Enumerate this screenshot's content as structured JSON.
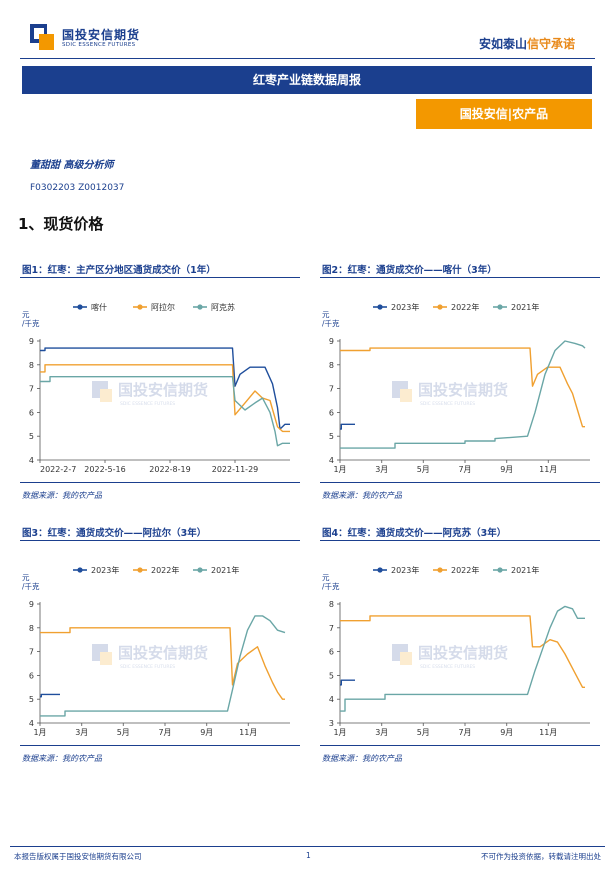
{
  "header": {
    "logo_cn": "国投安信期货",
    "logo_en": "SDIC ESSENCE FUTURES",
    "slogan_part1": "安如泰山",
    "slogan_part2": "信守承诺",
    "title": "红枣产业链数据周报",
    "tag": "国投安信|农产品"
  },
  "analyst": {
    "name_title": "董甜甜  高级分析师",
    "license": "F0302203  Z0012037"
  },
  "section": {
    "title": "1、现货价格"
  },
  "colors": {
    "brand_blue": "#1b3f8e",
    "brand_orange": "#f39800",
    "s_blue": "#1f4e9c",
    "s_orange": "#f0a030",
    "s_teal": "#6aa6a6"
  },
  "watermark": {
    "cn": "国投安信期货",
    "en": "SDIC ESSENCE FUTURES"
  },
  "source_text": "数据来源：我的农产品",
  "chart_data": [
    {
      "id": "fig1",
      "title": "图1：红枣：主产区分地区通货成交价（1年）",
      "type": "line",
      "ylabel": "元\n/千克",
      "ylim": [
        4,
        9
      ],
      "yticks": [
        4,
        5,
        6,
        7,
        8,
        9
      ],
      "xlim": [
        0,
        1
      ],
      "xticks": [
        0.0,
        0.26,
        0.52,
        0.78
      ],
      "xticklabels": [
        "2022-2-7",
        "2022-5-16",
        "2022-8-19",
        "2022-11-29"
      ],
      "series": [
        {
          "name": "喀什",
          "color": "#1f4e9c",
          "x": [
            0,
            0.02,
            0.02,
            0.77,
            0.78,
            0.8,
            0.84,
            0.9,
            0.93,
            0.95,
            0.96,
            0.98,
            1.0
          ],
          "y": [
            8.6,
            8.6,
            8.7,
            8.7,
            7.1,
            7.6,
            7.9,
            7.9,
            7.2,
            6.2,
            5.3,
            5.5,
            5.5
          ]
        },
        {
          "name": "阿拉尔",
          "color": "#f0a030",
          "x": [
            0,
            0.02,
            0.02,
            0.77,
            0.78,
            0.82,
            0.86,
            0.89,
            0.92,
            0.95,
            0.97,
            1.0
          ],
          "y": [
            7.7,
            7.7,
            8.0,
            8.0,
            5.9,
            6.4,
            6.9,
            6.6,
            6.5,
            5.4,
            5.2,
            5.2
          ]
        },
        {
          "name": "阿克苏",
          "color": "#6aa6a6",
          "x": [
            0,
            0.04,
            0.04,
            0.77,
            0.78,
            0.82,
            0.86,
            0.89,
            0.92,
            0.94,
            0.95,
            0.97,
            1.0
          ],
          "y": [
            7.3,
            7.3,
            7.5,
            7.5,
            6.5,
            6.1,
            6.4,
            6.6,
            6.0,
            5.2,
            4.6,
            4.7,
            4.7
          ]
        }
      ],
      "source": "数据来源：我的农产品"
    },
    {
      "id": "fig2",
      "title": "图2：红枣：通货成交价——喀什（3年）",
      "type": "line",
      "ylabel": "元\n/千克",
      "ylim": [
        4,
        9
      ],
      "yticks": [
        4,
        5,
        6,
        7,
        8,
        9
      ],
      "xlim": [
        0,
        1
      ],
      "xticks": [
        0.0,
        0.167,
        0.333,
        0.5,
        0.667,
        0.833
      ],
      "xticklabels": [
        "1月",
        "3月",
        "5月",
        "7月",
        "9月",
        "11月"
      ],
      "series": [
        {
          "name": "2023年",
          "color": "#1f4e9c",
          "x": [
            0,
            0.005,
            0.005,
            0.06
          ],
          "y": [
            5.3,
            5.3,
            5.5,
            5.5
          ]
        },
        {
          "name": "2022年",
          "color": "#f0a030",
          "x": [
            0,
            0.12,
            0.12,
            0.76,
            0.77,
            0.79,
            0.83,
            0.88,
            0.91,
            0.93,
            0.95,
            0.97,
            0.98
          ],
          "y": [
            8.6,
            8.6,
            8.7,
            8.7,
            7.1,
            7.6,
            7.9,
            7.9,
            7.2,
            6.8,
            6.1,
            5.4,
            5.4
          ]
        },
        {
          "name": "2021年",
          "color": "#6aa6a6",
          "x": [
            0,
            0.22,
            0.22,
            0.5,
            0.5,
            0.62,
            0.62,
            0.75,
            0.78,
            0.82,
            0.86,
            0.9,
            0.94,
            0.97,
            0.98
          ],
          "y": [
            4.5,
            4.5,
            4.7,
            4.7,
            4.8,
            4.8,
            4.9,
            5.0,
            6.0,
            7.6,
            8.6,
            9.0,
            8.9,
            8.8,
            8.7
          ]
        }
      ],
      "source": "数据来源：我的农产品"
    },
    {
      "id": "fig3",
      "title": "图3：红枣：通货成交价——阿拉尔（3年）",
      "type": "line",
      "ylabel": "元\n/千克",
      "ylim": [
        4,
        9
      ],
      "yticks": [
        4,
        5,
        6,
        7,
        8,
        9
      ],
      "xlim": [
        0,
        1
      ],
      "xticks": [
        0.0,
        0.167,
        0.333,
        0.5,
        0.667,
        0.833
      ],
      "xticklabels": [
        "1月",
        "3月",
        "5月",
        "7月",
        "9月",
        "11月"
      ],
      "series": [
        {
          "name": "2023年",
          "color": "#1f4e9c",
          "x": [
            0,
            0.005,
            0.005,
            0.08
          ],
          "y": [
            5.1,
            5.1,
            5.2,
            5.2
          ]
        },
        {
          "name": "2022年",
          "color": "#f0a030",
          "x": [
            0,
            0.12,
            0.12,
            0.76,
            0.77,
            0.79,
            0.83,
            0.87,
            0.9,
            0.93,
            0.95,
            0.97,
            0.98
          ],
          "y": [
            7.8,
            7.8,
            8.0,
            8.0,
            5.6,
            6.5,
            6.9,
            7.2,
            6.4,
            5.7,
            5.3,
            5.0,
            5.0
          ]
        },
        {
          "name": "2021年",
          "color": "#6aa6a6",
          "x": [
            0,
            0.1,
            0.1,
            0.75,
            0.77,
            0.8,
            0.83,
            0.86,
            0.89,
            0.92,
            0.95,
            0.98
          ],
          "y": [
            4.3,
            4.3,
            4.5,
            4.5,
            5.4,
            6.8,
            7.9,
            8.5,
            8.5,
            8.3,
            7.9,
            7.8
          ]
        }
      ],
      "source": "数据来源：我的农产品"
    },
    {
      "id": "fig4",
      "title": "图4：红枣：通货成交价——阿克苏（3年）",
      "type": "line",
      "ylabel": "元\n/千克",
      "ylim": [
        3,
        8
      ],
      "yticks": [
        3,
        4,
        5,
        6,
        7,
        8
      ],
      "xlim": [
        0,
        1
      ],
      "xticks": [
        0.0,
        0.167,
        0.333,
        0.5,
        0.667,
        0.833
      ],
      "xticklabels": [
        "1月",
        "3月",
        "5月",
        "7月",
        "9月",
        "11月"
      ],
      "series": [
        {
          "name": "2023年",
          "color": "#1f4e9c",
          "x": [
            0,
            0.005,
            0.005,
            0.06
          ],
          "y": [
            4.6,
            4.6,
            4.8,
            4.8
          ]
        },
        {
          "name": "2022年",
          "color": "#f0a030",
          "x": [
            0,
            0.12,
            0.12,
            0.76,
            0.77,
            0.8,
            0.84,
            0.87,
            0.9,
            0.93,
            0.95,
            0.97,
            0.98
          ],
          "y": [
            7.3,
            7.3,
            7.5,
            7.5,
            6.2,
            6.2,
            6.5,
            6.4,
            5.9,
            5.3,
            4.9,
            4.5,
            4.5
          ]
        },
        {
          "name": "2021年",
          "color": "#6aa6a6",
          "x": [
            0,
            0.02,
            0.02,
            0.18,
            0.18,
            0.75,
            0.78,
            0.81,
            0.84,
            0.87,
            0.9,
            0.93,
            0.95,
            0.98
          ],
          "y": [
            3.5,
            3.5,
            4.0,
            4.0,
            4.2,
            4.2,
            5.2,
            6.1,
            7.0,
            7.7,
            7.9,
            7.8,
            7.4,
            7.4
          ]
        }
      ],
      "source": "数据来源：我的农产品"
    }
  ],
  "footer": {
    "left": "本报告版权属于国投安信期货有限公司",
    "page": "1",
    "right": "不可作为投资依据，转载请注明出处"
  }
}
